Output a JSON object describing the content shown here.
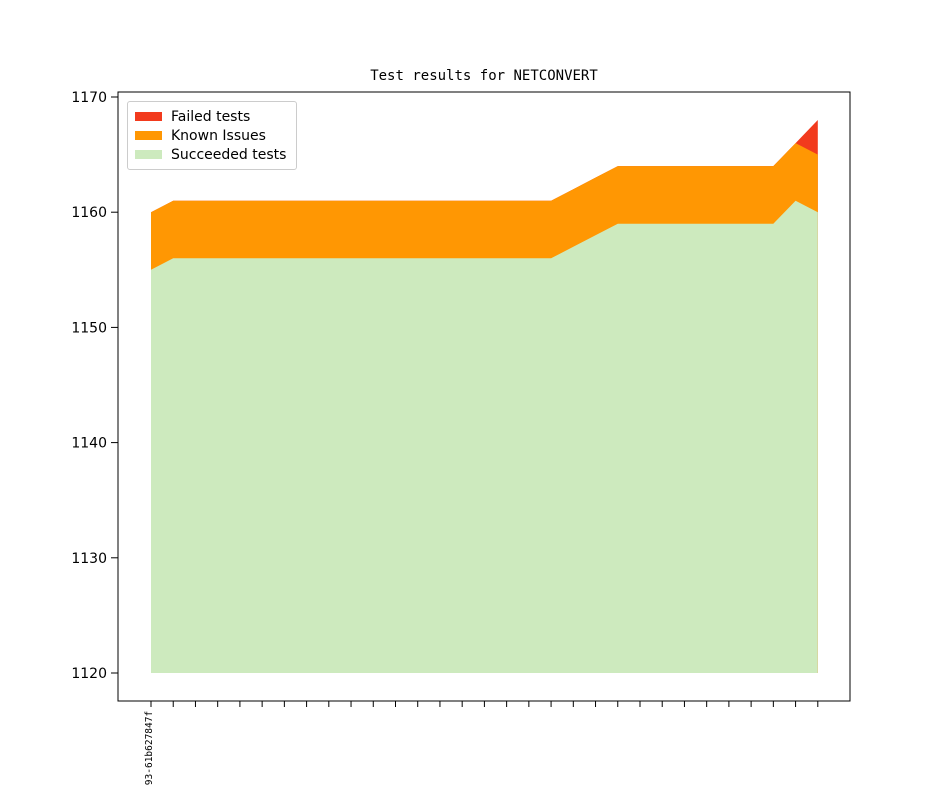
{
  "chart_data": {
    "type": "area",
    "stacked": true,
    "title": "Test results for NETCONVERT",
    "n_points": 31,
    "x_first_label": "93-61b627847f",
    "baseline": 1120,
    "yticks": [
      1120,
      1130,
      1140,
      1150,
      1160,
      1170
    ],
    "ylim": [
      1117.5,
      1170.5
    ],
    "grid": false,
    "legend_position": "upper left",
    "series": [
      {
        "name": "Succeeded tests",
        "color": "#cdeabe",
        "tops": [
          1155,
          1156,
          1156,
          1156,
          1156,
          1156,
          1156,
          1156,
          1156,
          1156,
          1156,
          1156,
          1156,
          1156,
          1156,
          1156,
          1156,
          1156,
          1156,
          1157,
          1158,
          1159,
          1159,
          1159,
          1159,
          1159,
          1159,
          1159,
          1159,
          1161,
          1160
        ]
      },
      {
        "name": "Known Issues",
        "color": "#ff9703",
        "counts": [
          5,
          5,
          5,
          5,
          5,
          5,
          5,
          5,
          5,
          5,
          5,
          5,
          5,
          5,
          5,
          5,
          5,
          5,
          5,
          5,
          5,
          5,
          5,
          5,
          5,
          5,
          5,
          5,
          5,
          5,
          5
        ],
        "tops": [
          1160,
          1161,
          1161,
          1161,
          1161,
          1161,
          1161,
          1161,
          1161,
          1161,
          1161,
          1161,
          1161,
          1161,
          1161,
          1161,
          1161,
          1161,
          1161,
          1162,
          1163,
          1164,
          1164,
          1164,
          1164,
          1164,
          1164,
          1164,
          1164,
          1166,
          1165
        ]
      },
      {
        "name": "Failed tests",
        "color": "#f23a1d",
        "counts": [
          0,
          0,
          0,
          0,
          0,
          0,
          0,
          0,
          0,
          0,
          0,
          0,
          0,
          0,
          0,
          0,
          0,
          0,
          0,
          0,
          0,
          0,
          0,
          0,
          0,
          0,
          0,
          0,
          0,
          0,
          3
        ],
        "tops": [
          1160,
          1161,
          1161,
          1161,
          1161,
          1161,
          1161,
          1161,
          1161,
          1161,
          1161,
          1161,
          1161,
          1161,
          1161,
          1161,
          1161,
          1161,
          1161,
          1162,
          1163,
          1164,
          1164,
          1164,
          1164,
          1164,
          1164,
          1164,
          1164,
          1166,
          1168
        ]
      }
    ]
  },
  "legend": [
    {
      "label": "Failed tests",
      "color": "#f23a1d"
    },
    {
      "label": "Known Issues",
      "color": "#ff9703"
    },
    {
      "label": "Succeeded tests",
      "color": "#cdeabe"
    }
  ]
}
